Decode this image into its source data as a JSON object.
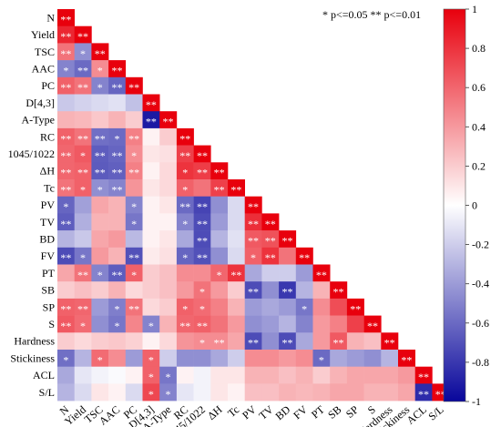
{
  "legend_note": "* p<=0.05  ** p<=0.01",
  "chart_data": {
    "type": "heatmap",
    "layout": "lower-triangle",
    "variables": [
      "N",
      "Yield",
      "TSC",
      "AAC",
      "PC",
      "D[4,3]",
      "A-Type",
      "RC",
      "1045/1022",
      "ΔH",
      "Tc",
      "PV",
      "TV",
      "BD",
      "FV",
      "PT",
      "SB",
      "SP",
      "S",
      "Hardness",
      "Stickiness",
      "ACL",
      "S/L"
    ],
    "colorbar": {
      "min": -1,
      "max": 1,
      "ticks": [
        "1",
        "0.8",
        "0.6",
        "0.4",
        "0.2",
        "0",
        "-0.2",
        "-0.4",
        "-0.6",
        "-0.8",
        "-1"
      ],
      "colors": {
        "neg": "#08069b",
        "zero": "#ffffff",
        "pos": "#e8000d"
      }
    },
    "values": [
      [
        1.0
      ],
      [
        0.85,
        1.0
      ],
      [
        0.55,
        -0.45,
        1.0
      ],
      [
        -0.5,
        -0.6,
        0.45,
        1.0
      ],
      [
        0.62,
        0.55,
        -0.5,
        -0.62,
        1.0
      ],
      [
        -0.22,
        -0.18,
        -0.15,
        -0.12,
        -0.25,
        1.0
      ],
      [
        0.3,
        0.28,
        0.22,
        0.3,
        0.2,
        -0.92,
        1.0
      ],
      [
        0.62,
        0.55,
        -0.58,
        -0.6,
        0.5,
        0.05,
        0.2,
        1.0
      ],
      [
        0.6,
        0.65,
        -0.65,
        -0.62,
        0.45,
        0.1,
        0.12,
        0.75,
        1.0
      ],
      [
        0.6,
        0.62,
        -0.66,
        -0.64,
        0.5,
        0.05,
        0.15,
        0.8,
        0.76,
        1.0
      ],
      [
        0.55,
        0.62,
        -0.45,
        -0.5,
        0.42,
        0.1,
        0.15,
        0.62,
        0.55,
        0.75,
        1.0
      ],
      [
        -0.62,
        -0.38,
        0.35,
        0.3,
        -0.5,
        0.05,
        0.1,
        -0.6,
        -0.75,
        -0.45,
        -0.15,
        1.0
      ],
      [
        -0.65,
        -0.32,
        0.3,
        0.3,
        -0.55,
        0.05,
        0.05,
        -0.5,
        -0.72,
        -0.4,
        -0.15,
        0.82,
        1.0
      ],
      [
        -0.3,
        -0.22,
        0.35,
        0.4,
        -0.28,
        0.05,
        0.1,
        -0.35,
        -0.72,
        -0.3,
        -0.12,
        0.65,
        0.68,
        1.0
      ],
      [
        -0.72,
        -0.55,
        0.4,
        0.3,
        -0.7,
        0.08,
        0.12,
        -0.62,
        -0.7,
        -0.45,
        -0.15,
        0.62,
        0.8,
        0.55,
        1.0
      ],
      [
        0.35,
        0.55,
        -0.5,
        -0.65,
        0.62,
        0.2,
        0.25,
        0.45,
        0.45,
        0.6,
        0.8,
        -0.35,
        -0.2,
        -0.2,
        -0.4,
        1.0
      ],
      [
        0.2,
        0.25,
        0.2,
        0.3,
        0.15,
        0.2,
        0.25,
        0.4,
        0.55,
        0.4,
        0.2,
        -0.72,
        -0.45,
        -0.8,
        -0.3,
        0.3,
        1.0
      ],
      [
        0.62,
        0.6,
        -0.4,
        -0.52,
        0.55,
        0.15,
        0.2,
        0.62,
        0.58,
        0.5,
        0.3,
        -0.4,
        -0.35,
        -0.4,
        -0.55,
        0.45,
        0.7,
        1.0
      ],
      [
        0.65,
        0.58,
        -0.45,
        -0.55,
        0.48,
        -0.5,
        0.3,
        0.6,
        0.62,
        0.55,
        0.4,
        -0.45,
        -0.4,
        -0.3,
        -0.5,
        0.4,
        0.5,
        0.75,
        1.0
      ],
      [
        0.2,
        0.15,
        0.2,
        0.22,
        0.18,
        0.05,
        0.15,
        0.42,
        0.45,
        0.45,
        0.35,
        -0.72,
        -0.45,
        -0.72,
        -0.35,
        0.4,
        0.65,
        0.3,
        0.25,
        1.0
      ],
      [
        -0.58,
        -0.3,
        0.58,
        0.45,
        -0.4,
        0.62,
        -0.2,
        -0.45,
        -0.45,
        -0.35,
        -0.2,
        0.45,
        0.45,
        0.4,
        0.45,
        -0.6,
        -0.35,
        -0.4,
        -0.45,
        -0.3,
        1.0
      ],
      [
        -0.35,
        -0.1,
        -0.05,
        -0.02,
        0.05,
        0.62,
        -0.55,
        0.05,
        -0.05,
        0.1,
        0.1,
        0.3,
        0.3,
        0.25,
        0.3,
        0.2,
        0.3,
        0.35,
        0.35,
        0.35,
        0.4,
        1.0
      ],
      [
        -0.3,
        -0.15,
        0.1,
        0.05,
        -0.15,
        0.72,
        -0.5,
        -0.1,
        -0.05,
        0.1,
        0.05,
        0.25,
        0.25,
        0.3,
        0.28,
        0.3,
        0.35,
        0.35,
        0.3,
        0.3,
        0.35,
        -0.85,
        1.0
      ]
    ],
    "significance": [
      [
        "**"
      ],
      [
        "**",
        "**"
      ],
      [
        "**",
        "*",
        "**"
      ],
      [
        "*",
        "**",
        "*",
        "**"
      ],
      [
        "**",
        "**",
        "*",
        "**",
        "**"
      ],
      [
        "",
        "",
        "",
        "",
        "",
        "**"
      ],
      [
        "",
        "",
        "",
        "",
        "",
        "**",
        "**"
      ],
      [
        "**",
        "**",
        "**",
        "*",
        "**",
        "",
        "",
        "**"
      ],
      [
        "**",
        "*",
        "**",
        "**",
        "*",
        "",
        "",
        "**",
        "**"
      ],
      [
        "**",
        "**",
        "**",
        "**",
        "**",
        "",
        "",
        "*",
        "**",
        "**"
      ],
      [
        "**",
        "*",
        "*",
        "**",
        "",
        "",
        "",
        "*",
        "",
        "**",
        "**"
      ],
      [
        "*",
        "",
        "",
        "",
        "*",
        "",
        "",
        "**",
        "**",
        "",
        "",
        "**"
      ],
      [
        "**",
        "",
        "",
        "",
        "*",
        "",
        "",
        "*",
        "**",
        "",
        "",
        "**",
        "**"
      ],
      [
        "",
        "",
        "",
        "",
        "",
        "",
        "",
        "",
        "**",
        "",
        "",
        "**",
        "**",
        "**"
      ],
      [
        "**",
        "*",
        "",
        "",
        "**",
        "",
        "",
        "*",
        "**",
        "",
        "",
        "*",
        "**",
        "",
        "**"
      ],
      [
        "",
        "**",
        "*",
        "**",
        "*",
        "",
        "",
        "",
        "",
        "*",
        "**",
        "",
        "",
        "",
        "",
        "**"
      ],
      [
        "",
        "",
        "",
        "",
        "",
        "",
        "",
        "",
        "*",
        "",
        "",
        "**",
        "",
        "**",
        "",
        "",
        "**"
      ],
      [
        "**",
        "**",
        "",
        "*",
        "**",
        "",
        "",
        "*",
        "*",
        "",
        "",
        "",
        "",
        "",
        "*",
        "",
        "",
        "**"
      ],
      [
        "**",
        "*",
        "",
        "*",
        "",
        "*",
        "",
        "**",
        "**",
        "",
        "",
        "",
        "",
        "",
        "",
        "",
        "",
        "",
        "**"
      ],
      [
        "",
        "",
        "",
        "",
        "",
        "",
        "",
        "",
        "*",
        "**",
        "",
        "**",
        "",
        "**",
        "",
        "",
        "**",
        "",
        "",
        "**"
      ],
      [
        "*",
        "",
        "*",
        "",
        "",
        "*",
        "",
        "",
        "",
        "",
        "",
        "",
        "",
        "",
        "",
        "*",
        "",
        "",
        "",
        "",
        "**"
      ],
      [
        "",
        "",
        "",
        "",
        "",
        "*",
        "*",
        "",
        "",
        "",
        "",
        "",
        "",
        "",
        "",
        "",
        "",
        "",
        "",
        "",
        "",
        "**"
      ],
      [
        "",
        "",
        "",
        "",
        "",
        "*",
        "*",
        "",
        "",
        "",
        "",
        "",
        "",
        "",
        "",
        "",
        "",
        "",
        "",
        "",
        "",
        "**",
        "**"
      ]
    ]
  }
}
